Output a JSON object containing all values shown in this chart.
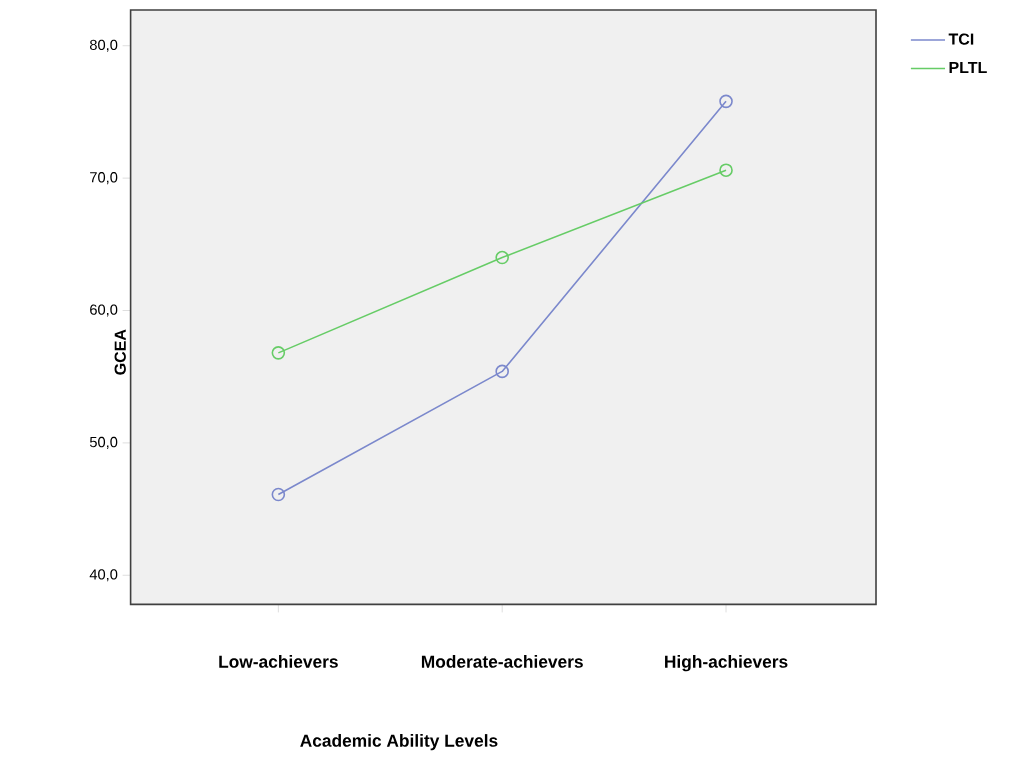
{
  "chart_data": {
    "type": "line",
    "xlabel": "Academic Ability Levels",
    "ylabel": "GCEA",
    "categories": [
      "Low-achievers",
      "Moderate-achievers",
      "High-achievers"
    ],
    "series": [
      {
        "name": "TCI",
        "color": "#7b88cc",
        "values": [
          46.1,
          55.4,
          75.8
        ]
      },
      {
        "name": "PLTL",
        "color": "#66cc66",
        "values": [
          56.8,
          64.0,
          70.6
        ]
      }
    ],
    "ylim": [
      37.8,
      82.7
    ],
    "yticks": [
      {
        "value": 40,
        "label": "40,0"
      },
      {
        "value": 50,
        "label": "50,0"
      },
      {
        "value": 60,
        "label": "60,0"
      },
      {
        "value": 70,
        "label": "70,0"
      },
      {
        "value": 80,
        "label": "80,0"
      }
    ],
    "grid": false,
    "legend": "top right",
    "marker": "circle",
    "line_style": "solid"
  }
}
